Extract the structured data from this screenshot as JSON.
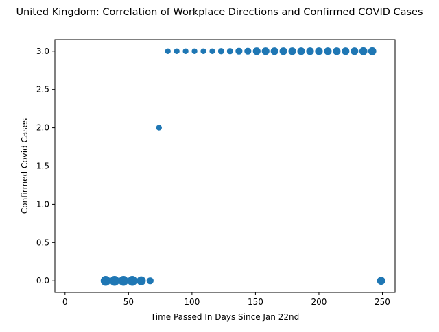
{
  "chart_data": {
    "type": "scatter",
    "title": "United Kingdom: Correlation of Workplace Directions and Confirmed COVID Cases",
    "xlabel": "Time Passed In Days Since Jan 22nd",
    "ylabel": "Confirmed Covid Cases",
    "xlim": [
      -8,
      260
    ],
    "ylim": [
      -0.15,
      3.15
    ],
    "xticks": [
      0,
      50,
      100,
      150,
      200,
      250
    ],
    "xtick_labels": [
      "0",
      "50",
      "100",
      "150",
      "200",
      "250"
    ],
    "yticks": [
      0.0,
      0.5,
      1.0,
      1.5,
      2.0,
      2.5,
      3.0
    ],
    "ytick_labels": [
      "0.0",
      "0.5",
      "1.0",
      "1.5",
      "2.0",
      "2.5",
      "3.0"
    ],
    "grid": false,
    "marker_color": "#1f77b4",
    "points": [
      {
        "x": 32,
        "y": 0,
        "size": 3
      },
      {
        "x": 39,
        "y": 0,
        "size": 3
      },
      {
        "x": 46,
        "y": 0,
        "size": 3
      },
      {
        "x": 53,
        "y": 0,
        "size": 3
      },
      {
        "x": 60,
        "y": 0,
        "size": 2.5
      },
      {
        "x": 67,
        "y": 0,
        "size": 1.5
      },
      {
        "x": 74,
        "y": 2,
        "size": 1
      },
      {
        "x": 81,
        "y": 3,
        "size": 1
      },
      {
        "x": 88,
        "y": 3,
        "size": 1
      },
      {
        "x": 95,
        "y": 3,
        "size": 1
      },
      {
        "x": 102,
        "y": 3,
        "size": 1
      },
      {
        "x": 109,
        "y": 3,
        "size": 1
      },
      {
        "x": 116,
        "y": 3,
        "size": 1
      },
      {
        "x": 123,
        "y": 3,
        "size": 1.2
      },
      {
        "x": 130,
        "y": 3,
        "size": 1.2
      },
      {
        "x": 137,
        "y": 3,
        "size": 1.5
      },
      {
        "x": 144,
        "y": 3,
        "size": 1.5
      },
      {
        "x": 151,
        "y": 3,
        "size": 1.8
      },
      {
        "x": 158,
        "y": 3,
        "size": 1.8
      },
      {
        "x": 165,
        "y": 3,
        "size": 1.8
      },
      {
        "x": 172,
        "y": 3,
        "size": 1.8
      },
      {
        "x": 179,
        "y": 3,
        "size": 1.8
      },
      {
        "x": 186,
        "y": 3,
        "size": 1.8
      },
      {
        "x": 193,
        "y": 3,
        "size": 1.8
      },
      {
        "x": 200,
        "y": 3,
        "size": 1.8
      },
      {
        "x": 207,
        "y": 3,
        "size": 1.8
      },
      {
        "x": 214,
        "y": 3,
        "size": 1.8
      },
      {
        "x": 221,
        "y": 3,
        "size": 1.8
      },
      {
        "x": 228,
        "y": 3,
        "size": 1.8
      },
      {
        "x": 235,
        "y": 3,
        "size": 2
      },
      {
        "x": 242,
        "y": 3,
        "size": 2
      },
      {
        "x": 249,
        "y": 0,
        "size": 2
      }
    ]
  }
}
